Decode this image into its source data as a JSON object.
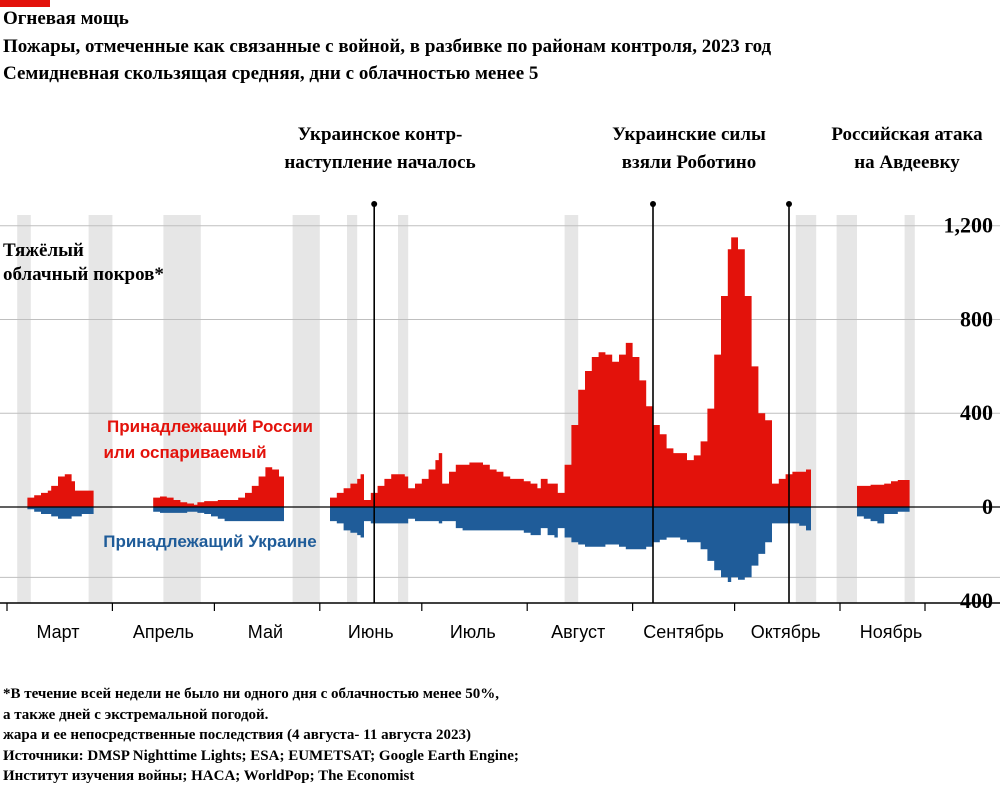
{
  "header": {
    "title": "Огневая мощь",
    "subtitle1": "Пожары, отмеченные как связанные с войной, в разбивке по районам контроля, 2023 год",
    "subtitle2": "Семидневная скользящая средняя, дни с облачностью менее 5"
  },
  "colors": {
    "accent": "#e3120b",
    "russia": "#e3120b",
    "ukraine": "#1f5c99",
    "cloud": "#e6e6e6",
    "grid": "#bfbfbf"
  },
  "chart_data": {
    "type": "area",
    "x_unit": "days since 2023-02-20",
    "x_range": [
      0,
      270
    ],
    "y_range": [
      -400,
      1200
    ],
    "y_ticks": [
      {
        "value": 1200,
        "label": "1,200"
      },
      {
        "value": 800,
        "label": "800"
      },
      {
        "value": 400,
        "label": "400"
      },
      {
        "value": 0,
        "label": "0"
      },
      {
        "value": -400,
        "label": "400"
      }
    ],
    "x_labels": [
      {
        "day": 15,
        "label": "Март"
      },
      {
        "day": 46,
        "label": "Апрель"
      },
      {
        "day": 76,
        "label": "Май"
      },
      {
        "day": 107,
        "label": "Июнь"
      },
      {
        "day": 137,
        "label": "Июль"
      },
      {
        "day": 168,
        "label": "Август"
      },
      {
        "day": 199,
        "label": "Сентябрь"
      },
      {
        "day": 229,
        "label": "Октябрь"
      },
      {
        "day": 260,
        "label": "Ноябрь"
      }
    ],
    "x_ticks": [
      0,
      31,
      61,
      92,
      122,
      153,
      184,
      214,
      245,
      270
    ],
    "series": [
      {
        "name": "Принадлежащий России или оспариваемый",
        "points": [
          [
            6,
            40
          ],
          [
            8,
            50
          ],
          [
            10,
            60
          ],
          [
            12,
            70
          ],
          [
            13,
            90
          ],
          [
            15,
            130
          ],
          [
            17,
            140
          ],
          [
            19,
            110
          ],
          [
            20,
            70
          ],
          [
            22,
            70
          ],
          [
            24,
            70
          ],
          [
            43,
            40
          ],
          [
            45,
            45
          ],
          [
            47,
            40
          ],
          [
            49,
            30
          ],
          [
            51,
            20
          ],
          [
            53,
            15
          ],
          [
            55,
            10
          ],
          [
            56,
            20
          ],
          [
            58,
            25
          ],
          [
            60,
            25
          ],
          [
            62,
            30
          ],
          [
            64,
            30
          ],
          [
            66,
            30
          ],
          [
            68,
            40
          ],
          [
            70,
            60
          ],
          [
            72,
            90
          ],
          [
            74,
            130
          ],
          [
            76,
            170
          ],
          [
            78,
            160
          ],
          [
            80,
            130
          ],
          [
            95,
            40
          ],
          [
            97,
            60
          ],
          [
            99,
            80
          ],
          [
            101,
            100
          ],
          [
            103,
            120
          ],
          [
            104,
            140
          ],
          [
            105,
            30
          ],
          [
            107,
            60
          ],
          [
            109,
            90
          ],
          [
            111,
            120
          ],
          [
            113,
            140
          ],
          [
            115,
            140
          ],
          [
            117,
            130
          ],
          [
            118,
            80
          ],
          [
            120,
            100
          ],
          [
            122,
            120
          ],
          [
            124,
            160
          ],
          [
            126,
            200
          ],
          [
            127,
            230
          ],
          [
            128,
            100
          ],
          [
            130,
            150
          ],
          [
            132,
            180
          ],
          [
            134,
            180
          ],
          [
            136,
            190
          ],
          [
            138,
            190
          ],
          [
            140,
            180
          ],
          [
            142,
            160
          ],
          [
            144,
            150
          ],
          [
            146,
            130
          ],
          [
            148,
            120
          ],
          [
            150,
            120
          ],
          [
            152,
            110
          ],
          [
            154,
            100
          ],
          [
            156,
            80
          ],
          [
            157,
            120
          ],
          [
            159,
            100
          ],
          [
            161,
            100
          ],
          [
            162,
            60
          ],
          [
            164,
            180
          ],
          [
            166,
            350
          ],
          [
            168,
            500
          ],
          [
            170,
            580
          ],
          [
            172,
            640
          ],
          [
            174,
            660
          ],
          [
            176,
            650
          ],
          [
            178,
            620
          ],
          [
            180,
            650
          ],
          [
            182,
            700
          ],
          [
            184,
            640
          ],
          [
            186,
            540
          ],
          [
            188,
            430
          ],
          [
            190,
            350
          ],
          [
            192,
            310
          ],
          [
            194,
            250
          ],
          [
            196,
            230
          ],
          [
            198,
            230
          ],
          [
            200,
            200
          ],
          [
            202,
            220
          ],
          [
            204,
            280
          ],
          [
            206,
            420
          ],
          [
            208,
            650
          ],
          [
            210,
            900
          ],
          [
            212,
            1100
          ],
          [
            213,
            1150
          ],
          [
            215,
            1100
          ],
          [
            217,
            900
          ],
          [
            219,
            600
          ],
          [
            221,
            400
          ],
          [
            223,
            370
          ],
          [
            225,
            100
          ],
          [
            227,
            120
          ],
          [
            229,
            140
          ],
          [
            231,
            150
          ],
          [
            233,
            150
          ],
          [
            235,
            160
          ],
          [
            250,
            90
          ],
          [
            252,
            90
          ],
          [
            254,
            95
          ],
          [
            256,
            95
          ],
          [
            258,
            100
          ],
          [
            260,
            110
          ],
          [
            262,
            115
          ],
          [
            264,
            115
          ]
        ]
      },
      {
        "name": "Принадлежащий Украине",
        "points": [
          [
            6,
            -10
          ],
          [
            8,
            -20
          ],
          [
            10,
            -30
          ],
          [
            12,
            -30
          ],
          [
            13,
            -40
          ],
          [
            15,
            -50
          ],
          [
            17,
            -50
          ],
          [
            19,
            -40
          ],
          [
            20,
            -40
          ],
          [
            22,
            -30
          ],
          [
            24,
            -30
          ],
          [
            43,
            -20
          ],
          [
            45,
            -25
          ],
          [
            47,
            -25
          ],
          [
            49,
            -25
          ],
          [
            51,
            -25
          ],
          [
            53,
            -20
          ],
          [
            55,
            -20
          ],
          [
            56,
            -25
          ],
          [
            58,
            -30
          ],
          [
            60,
            -40
          ],
          [
            62,
            -50
          ],
          [
            64,
            -60
          ],
          [
            66,
            -60
          ],
          [
            68,
            -60
          ],
          [
            70,
            -60
          ],
          [
            72,
            -60
          ],
          [
            74,
            -60
          ],
          [
            76,
            -60
          ],
          [
            78,
            -60
          ],
          [
            80,
            -60
          ],
          [
            95,
            -60
          ],
          [
            97,
            -70
          ],
          [
            99,
            -100
          ],
          [
            101,
            -110
          ],
          [
            103,
            -120
          ],
          [
            104,
            -130
          ],
          [
            105,
            -60
          ],
          [
            107,
            -70
          ],
          [
            109,
            -70
          ],
          [
            111,
            -70
          ],
          [
            113,
            -70
          ],
          [
            115,
            -70
          ],
          [
            117,
            -70
          ],
          [
            118,
            -50
          ],
          [
            120,
            -60
          ],
          [
            122,
            -60
          ],
          [
            124,
            -60
          ],
          [
            126,
            -60
          ],
          [
            127,
            -70
          ],
          [
            128,
            -60
          ],
          [
            130,
            -60
          ],
          [
            132,
            -90
          ],
          [
            134,
            -100
          ],
          [
            136,
            -100
          ],
          [
            138,
            -100
          ],
          [
            140,
            -100
          ],
          [
            142,
            -100
          ],
          [
            144,
            -100
          ],
          [
            146,
            -100
          ],
          [
            148,
            -100
          ],
          [
            150,
            -100
          ],
          [
            152,
            -110
          ],
          [
            154,
            -120
          ],
          [
            156,
            -120
          ],
          [
            157,
            -90
          ],
          [
            159,
            -120
          ],
          [
            161,
            -130
          ],
          [
            162,
            -90
          ],
          [
            164,
            -130
          ],
          [
            166,
            -150
          ],
          [
            168,
            -160
          ],
          [
            170,
            -170
          ],
          [
            172,
            -170
          ],
          [
            174,
            -170
          ],
          [
            176,
            -160
          ],
          [
            178,
            -160
          ],
          [
            180,
            -170
          ],
          [
            182,
            -180
          ],
          [
            184,
            -180
          ],
          [
            186,
            -180
          ],
          [
            188,
            -170
          ],
          [
            190,
            -150
          ],
          [
            192,
            -140
          ],
          [
            194,
            -130
          ],
          [
            196,
            -130
          ],
          [
            198,
            -140
          ],
          [
            200,
            -150
          ],
          [
            202,
            -150
          ],
          [
            204,
            -180
          ],
          [
            206,
            -230
          ],
          [
            208,
            -270
          ],
          [
            210,
            -300
          ],
          [
            212,
            -320
          ],
          [
            213,
            -300
          ],
          [
            215,
            -310
          ],
          [
            217,
            -300
          ],
          [
            219,
            -250
          ],
          [
            221,
            -200
          ],
          [
            223,
            -150
          ],
          [
            225,
            -70
          ],
          [
            227,
            -70
          ],
          [
            229,
            -70
          ],
          [
            231,
            -70
          ],
          [
            233,
            -80
          ],
          [
            235,
            -100
          ],
          [
            250,
            -40
          ],
          [
            252,
            -50
          ],
          [
            254,
            -60
          ],
          [
            256,
            -70
          ],
          [
            258,
            -30
          ],
          [
            260,
            -30
          ],
          [
            262,
            -20
          ],
          [
            264,
            -20
          ]
        ]
      }
    ],
    "gaps": [
      [
        0,
        6
      ],
      [
        24,
        43
      ],
      [
        80,
        95
      ],
      [
        235,
        250
      ],
      [
        264,
        270
      ]
    ],
    "cloud_bands": [
      [
        3,
        7
      ],
      [
        24,
        31
      ],
      [
        46,
        57
      ],
      [
        84,
        92
      ],
      [
        100,
        103
      ],
      [
        115,
        118
      ],
      [
        164,
        168
      ],
      [
        232,
        238
      ],
      [
        244,
        250
      ],
      [
        264,
        267
      ]
    ],
    "events": [
      {
        "day": 108,
        "label_line1": "Украинское контр-",
        "label_line2": "наступление началось",
        "label_x": 380
      },
      {
        "day": 190,
        "label_line1": "Украинские силы",
        "label_line2": "взяли Роботино",
        "label_x": 689
      },
      {
        "day": 230,
        "label_line1": "Российская атака",
        "label_line2": "на Авдеевку",
        "label_x": 907
      }
    ],
    "legend": {
      "russia_line1": "Принадлежащий России",
      "russia_line2": "или оспариваемый",
      "ukraine": "Принадлежащий Украине"
    },
    "cloud_label_line1": "Тяжёлый",
    "cloud_label_line2": "облачный покров*"
  },
  "footnotes": [
    "*В течение всей недели не было ни одного дня с облачностью менее 50%,",
    "а также дней с экстремальной погодой.",
    "жара и ее непосредственные последствия (4 августа- 11 августа 2023)",
    "Источники: DMSP Nighttime Lights; ESA; EUMETSAT; Google Earth Engine;",
    "Институт изучения войны; HACA; WorldPop; The Economist"
  ]
}
